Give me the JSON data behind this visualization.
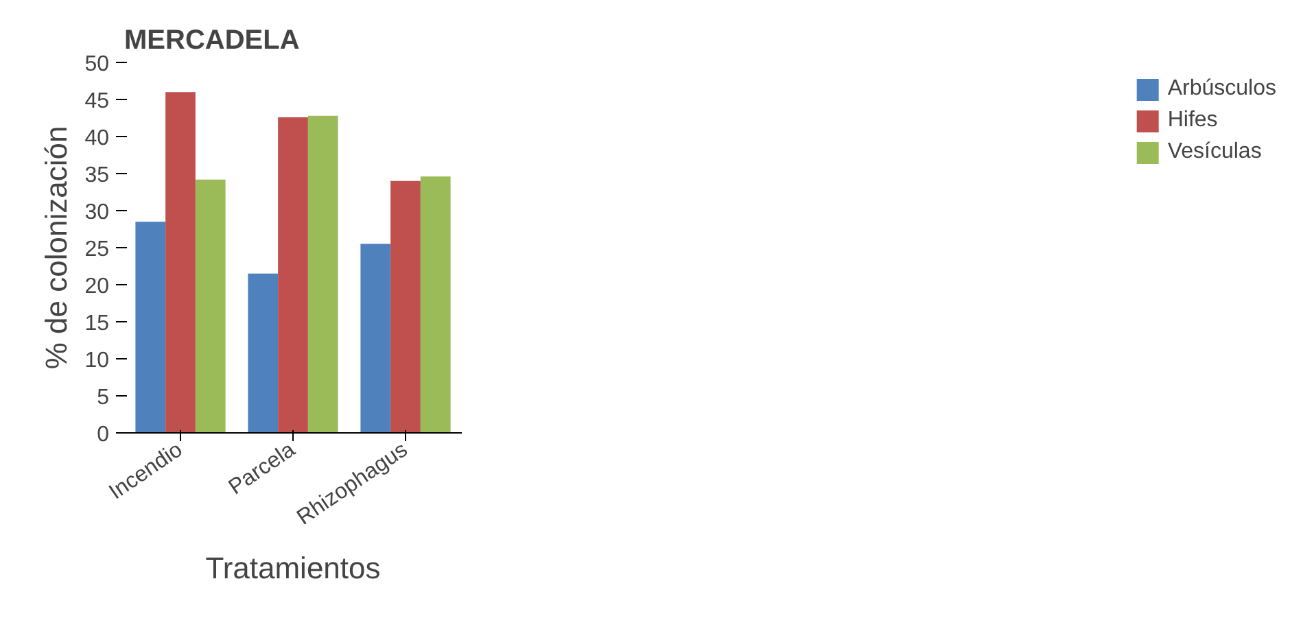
{
  "chart_data": {
    "type": "bar",
    "title": "MERCADELA",
    "xlabel": "Tratamientos",
    "ylabel": "% de colonización",
    "categories": [
      "Incendio",
      "Parcela",
      "Rhizophagus"
    ],
    "series": [
      {
        "name": "Arbúsculos",
        "color": "#4f81bd",
        "values": [
          28.5,
          21.5,
          25.5
        ]
      },
      {
        "name": "Hifes",
        "color": "#c0504d",
        "values": [
          46,
          42.6,
          34
        ]
      },
      {
        "name": "Vesículas",
        "color": "#9bbb59",
        "values": [
          34.2,
          42.8,
          34.6
        ]
      }
    ],
    "ylim": [
      0,
      50
    ],
    "yticks": [
      0,
      5,
      10,
      15,
      20,
      25,
      30,
      35,
      40,
      45,
      50
    ],
    "grid": false,
    "legend": "right"
  }
}
